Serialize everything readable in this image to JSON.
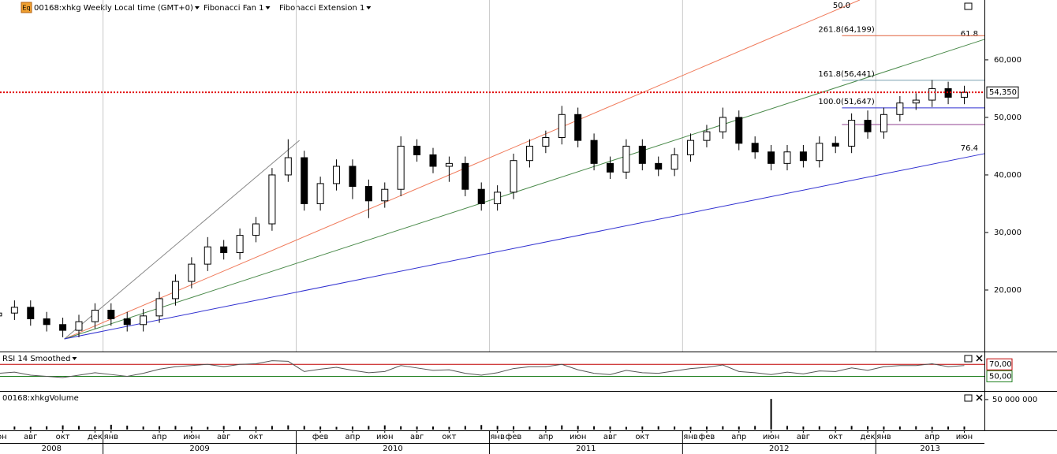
{
  "chart_data": [
    {
      "type": "candlestick",
      "icon_label": "Eq",
      "title": "00168:xhkg Weekly Local time (GMT+0)",
      "indicators": [
        "Fibonacci Fan 1",
        "Fibonacci Extension 1"
      ],
      "xlim": [
        5.6,
        66.75
      ],
      "ylim": [
        9450,
        70400
      ],
      "yticks": [
        {
          "value": 20000,
          "label": "20,000"
        },
        {
          "value": 30000,
          "label": "30,000"
        },
        {
          "value": 40000,
          "label": "40,000"
        },
        {
          "value": 50000,
          "label": "50,000"
        },
        {
          "value": 60000,
          "label": "60,000"
        }
      ],
      "xticks": [
        {
          "value": 5.5,
          "label": "июн"
        },
        {
          "value": 7.5,
          "label": "авг"
        },
        {
          "value": 9.5,
          "label": "окт"
        },
        {
          "value": 11.5,
          "label": "дек"
        },
        {
          "value": 12.5,
          "label": "янв"
        },
        {
          "value": 15.5,
          "label": "апр"
        },
        {
          "value": 17.5,
          "label": "июн"
        },
        {
          "value": 19.5,
          "label": "авг"
        },
        {
          "value": 21.5,
          "label": "окт"
        },
        {
          "value": 25.5,
          "label": "фев"
        },
        {
          "value": 27.5,
          "label": "апр"
        },
        {
          "value": 29.5,
          "label": "июн"
        },
        {
          "value": 31.5,
          "label": "авг"
        },
        {
          "value": 33.5,
          "label": "окт"
        },
        {
          "value": 36.5,
          "label": "янв"
        },
        {
          "value": 37.5,
          "label": "фев"
        },
        {
          "value": 39.5,
          "label": "апр"
        },
        {
          "value": 41.5,
          "label": "июн"
        },
        {
          "value": 43.5,
          "label": "авг"
        },
        {
          "value": 45.5,
          "label": "окт"
        },
        {
          "value": 48.5,
          "label": "янв"
        },
        {
          "value": 49.5,
          "label": "фев"
        },
        {
          "value": 51.5,
          "label": "апр"
        },
        {
          "value": 53.5,
          "label": "июн"
        },
        {
          "value": 55.5,
          "label": "авг"
        },
        {
          "value": 57.5,
          "label": "окт"
        },
        {
          "value": 59.5,
          "label": "дек"
        },
        {
          "value": 60.5,
          "label": "янв"
        },
        {
          "value": 63.5,
          "label": "апр"
        },
        {
          "value": 65.5,
          "label": "июн"
        }
      ],
      "years": [
        2008,
        2009,
        2010,
        2011,
        2012,
        2013
      ],
      "x": [
        5.5,
        6.5,
        7.5,
        8.5,
        9.5,
        10.5,
        11.5,
        12.5,
        13.5,
        14.5,
        15.5,
        16.5,
        17.5,
        18.5,
        19.5,
        20.5,
        21.5,
        22.5,
        23.5,
        24.5,
        25.5,
        26.5,
        27.5,
        28.5,
        29.5,
        30.5,
        31.5,
        32.5,
        33.5,
        34.5,
        35.5,
        36.5,
        37.5,
        38.5,
        39.5,
        40.5,
        41.5,
        42.5,
        43.5,
        44.5,
        45.5,
        46.5,
        47.5,
        48.5,
        49.5,
        50.5,
        51.5,
        52.5,
        53.5,
        54.5,
        55.5,
        56.5,
        57.5,
        58.5,
        59.5,
        60.5,
        61.5,
        62.5,
        63.5,
        64.5,
        65.5
      ],
      "open": [
        15500,
        16000,
        17000,
        15000,
        14000,
        13000,
        14500,
        16500,
        15000,
        14000,
        15500,
        18500,
        21500,
        24500,
        27500,
        26500,
        29500,
        31500,
        40000,
        43000,
        35000,
        38500,
        41500,
        38000,
        35500,
        37500,
        45000,
        43500,
        41500,
        42000,
        37500,
        35000,
        37000,
        42500,
        45000,
        46500,
        50500,
        46000,
        42000,
        40500,
        45000,
        42000,
        41000,
        43500,
        46000,
        47500,
        50000,
        45500,
        44000,
        42000,
        44000,
        42500,
        45500,
        45000,
        49500,
        47500,
        50500,
        52500,
        53000,
        55000,
        53500
      ],
      "high": [
        17200,
        18200,
        18200,
        16200,
        15200,
        15700,
        17700,
        17700,
        16200,
        16700,
        19700,
        22700,
        25700,
        29200,
        28700,
        30700,
        32700,
        41200,
        46200,
        44200,
        39700,
        42700,
        42700,
        39200,
        38700,
        46700,
        46200,
        44700,
        43200,
        43200,
        38700,
        38200,
        43700,
        46200,
        47700,
        52000,
        51700,
        47200,
        43200,
        46200,
        46200,
        43200,
        44700,
        47200,
        48700,
        51700,
        51200,
        46700,
        45200,
        45200,
        45200,
        46700,
        46700,
        50700,
        51200,
        51700,
        53700,
        54200,
        56500,
        56200,
        55500
      ],
      "low": [
        14300,
        14800,
        13800,
        12800,
        11800,
        11800,
        13300,
        13800,
        12800,
        12800,
        14300,
        17300,
        20300,
        23300,
        25300,
        25300,
        28300,
        30300,
        38800,
        33800,
        33800,
        37300,
        35800,
        32500,
        34300,
        36300,
        42300,
        40300,
        38800,
        36300,
        33800,
        33800,
        35800,
        41300,
        43800,
        45300,
        44800,
        40800,
        39300,
        39300,
        40800,
        39800,
        39800,
        42300,
        44800,
        46300,
        44300,
        42800,
        40800,
        40800,
        41300,
        41300,
        43800,
        43800,
        46300,
        46300,
        49300,
        51300,
        51800,
        52300,
        52300
      ],
      "close": [
        16000,
        17000,
        15000,
        14000,
        13000,
        14500,
        16500,
        15000,
        14000,
        15500,
        18500,
        21500,
        24500,
        27500,
        26500,
        29500,
        31500,
        40000,
        43000,
        35000,
        38500,
        41500,
        38000,
        35500,
        37500,
        45000,
        43500,
        41500,
        42000,
        37500,
        35000,
        37000,
        42500,
        45000,
        46500,
        50500,
        46000,
        42000,
        40500,
        45000,
        42000,
        41000,
        43500,
        46000,
        47500,
        50000,
        45500,
        44000,
        42000,
        44000,
        42500,
        45500,
        45000,
        49500,
        47500,
        50500,
        52500,
        53000,
        55000,
        53500,
        54350
      ],
      "last": {
        "value": 54350,
        "label": "54,350"
      },
      "fan": {
        "origin": [
          9.6,
          11500
        ],
        "trend_end": [
          24.2,
          46000
        ],
        "lines": [
          {
            "label": "50.0",
            "end": [
              59.0,
              70400
            ],
            "color": "#f07a5a"
          },
          {
            "label": "61.8",
            "end": [
              66.75,
              63560
            ],
            "color": "#4a8a4a"
          },
          {
            "label": "76.4",
            "end": [
              66.75,
              43700
            ],
            "color": "#3030d0"
          }
        ]
      },
      "extension": {
        "start": 57.9,
        "levels": [
          {
            "label": "261.8(64,199)",
            "value": 64199,
            "color": "#e0603a"
          },
          {
            "label": "161.8(56,441)",
            "value": 56441,
            "color": "#7aa0b0"
          },
          {
            "label": "100.0(51,647)",
            "value": 51647,
            "color": "#3030d0"
          },
          {
            "value": 48767,
            "color": "#904090"
          }
        ]
      }
    },
    {
      "type": "line",
      "title": "RSI 14 Smoothed",
      "ylim": [
        27,
        90
      ],
      "yticks": [
        {
          "value": 70,
          "label": "70,00"
        },
        {
          "value": 50,
          "label": "50,00"
        }
      ],
      "values": [
        55,
        57,
        52,
        50,
        48,
        52,
        56,
        53,
        50,
        55,
        62,
        66,
        68,
        70,
        66,
        70,
        71,
        76,
        75,
        58,
        62,
        65,
        60,
        56,
        58,
        68,
        64,
        60,
        61,
        55,
        52,
        56,
        63,
        66,
        66,
        70,
        61,
        55,
        53,
        60,
        56,
        55,
        59,
        63,
        65,
        69,
        58,
        56,
        53,
        57,
        54,
        59,
        58,
        64,
        60,
        66,
        68,
        68,
        71,
        66,
        68
      ]
    },
    {
      "type": "bar",
      "title": "00168:xhkgVolume",
      "ylim": [
        0,
        63000000
      ],
      "yticks": [
        {
          "value": 50000000,
          "label": "50 000 000"
        }
      ],
      "values": [
        6000000,
        5000000,
        4500000,
        5500000,
        7000000,
        6000000,
        5000000,
        8000000,
        6500000,
        5000000,
        5500000,
        6000000,
        5000000,
        4500000,
        6000000,
        5500000,
        5000000,
        6000000,
        7000000,
        6000000,
        5000000,
        4500000,
        5000000,
        6000000,
        7000000,
        5500000,
        5000000,
        5000000,
        4500000,
        6000000,
        7500000,
        6000000,
        5500000,
        5000000,
        6500000,
        7000000,
        6000000,
        5500000,
        5000000,
        4500000,
        5000000,
        5500000,
        5000000,
        4500000,
        5000000,
        5500000,
        5000000,
        6000000,
        51000000,
        6000000,
        5000000,
        5500000,
        5000000,
        6000000,
        5500000,
        5000000,
        5000000,
        5500000,
        4500000,
        5000000,
        5000000
      ]
    }
  ]
}
